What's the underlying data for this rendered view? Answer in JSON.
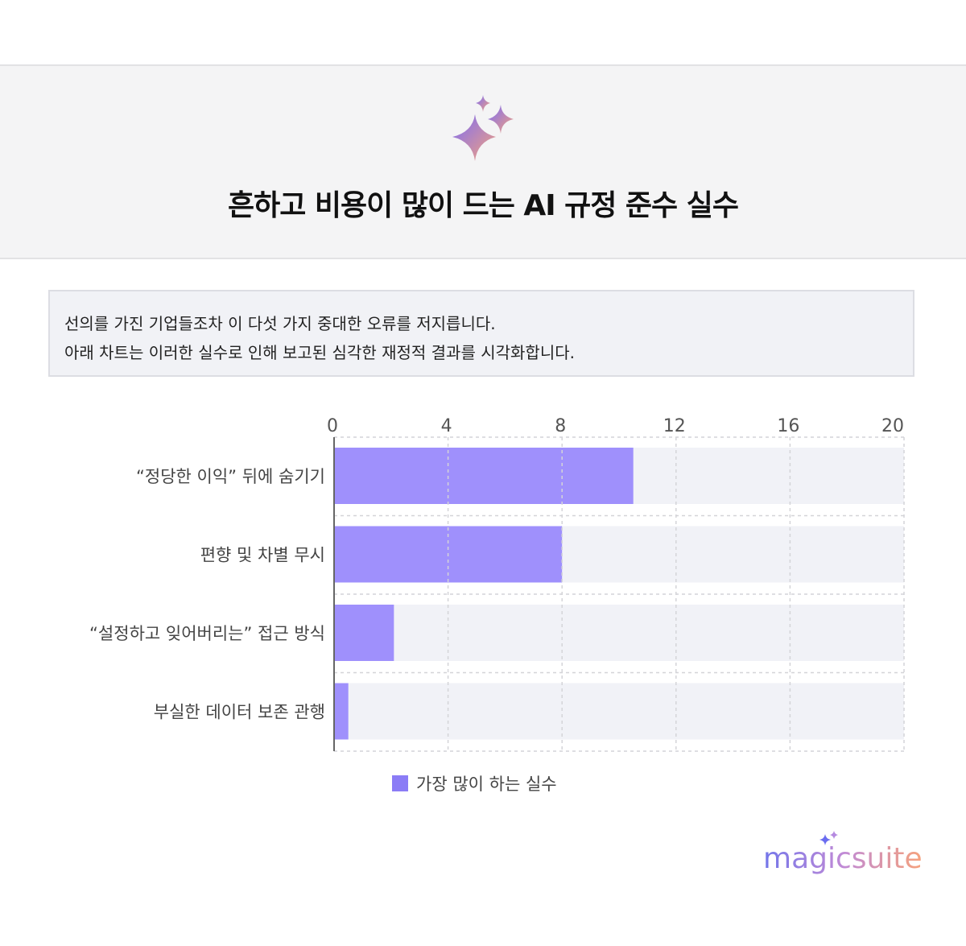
{
  "header": {
    "title": "흔하고 비용이 많이 드는 AI 규정 준수 실수",
    "icon": "sparkles-icon"
  },
  "description": {
    "lines": [
      "선의를 가진 기업들조차 이 다섯 가지 중대한 오류를 저지릅니다.",
      "아래 차트는 이러한 실수로 인해 보고된 심각한 재정적 결과를 시각화합니다."
    ]
  },
  "chart_data": {
    "type": "bar",
    "orientation": "horizontal",
    "categories": [
      "“정당한 이익” 뒤에 숨기기",
      "편향 및 차별 무시",
      "“설정하고 잊어버리는” 접근 방식",
      "부실한 데이터 보존 관행"
    ],
    "series": [
      {
        "name": "가장 많이 하는 실수",
        "values": [
          10.5,
          8,
          2.1,
          0.5
        ],
        "color": "#9f90fc"
      }
    ],
    "xlim": [
      0,
      20
    ],
    "xticks": [
      0,
      4,
      8,
      12,
      16,
      20
    ],
    "xaxis_position": "top",
    "grid": true,
    "legend": "bottom",
    "track_color": "#f1f2f7"
  },
  "brand": {
    "logo_text": "magicsuite"
  }
}
